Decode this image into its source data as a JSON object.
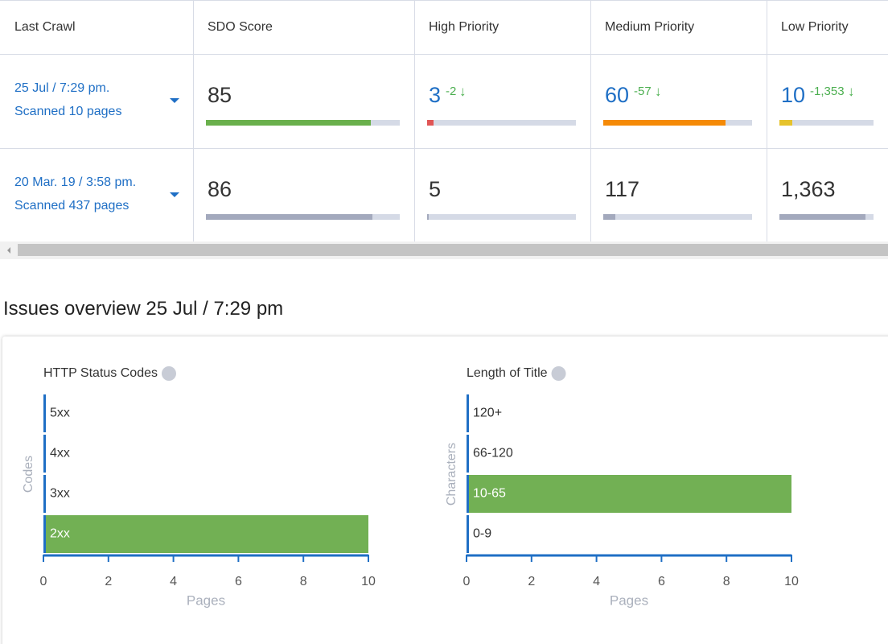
{
  "table": {
    "headers": [
      "Last Crawl",
      "SDO Score",
      "High Priority",
      "Medium Priority",
      "Low Priority"
    ],
    "rows": [
      {
        "date": "25 Jul / 7:29 pm.",
        "pages": "Scanned 10 pages",
        "score": {
          "value": 85,
          "color": "#6ab04c"
        },
        "high": {
          "value": 3,
          "change": -2,
          "color": "#e05555"
        },
        "medium": {
          "value": 60,
          "change": -57,
          "color": "#f58a07"
        },
        "low": {
          "value": 10,
          "change": -1353,
          "change_label": "-1,353",
          "color": "#e6c32c"
        }
      },
      {
        "date": "20 Mar. 19 / 3:58 pm.",
        "pages": "Scanned 437 pages",
        "score": {
          "value": 86,
          "color": "#a3a9bd"
        },
        "high": {
          "value": 5,
          "color": "#a3a9bd"
        },
        "medium": {
          "value": 117,
          "color": "#a3a9bd"
        },
        "low": {
          "value": 1363,
          "label": "1,363",
          "color": "#a3a9bd"
        }
      }
    ]
  },
  "section_title": "Issues overview 25 Jul / 7:29 pm",
  "chart_data": [
    {
      "type": "bar",
      "title": "HTTP Status Codes",
      "categories": [
        "5xx",
        "4xx",
        "3xx",
        "2xx"
      ],
      "values": [
        0,
        0,
        0,
        10
      ],
      "color": "#72b054",
      "xlim": [
        0,
        10
      ],
      "xticks": [
        0,
        2,
        4,
        6,
        8,
        10
      ],
      "xlabel": "Pages",
      "ylabel": "Codes"
    },
    {
      "type": "bar",
      "title": "Length of Title",
      "categories": [
        "120+",
        "66-120",
        "10-65",
        "0-9"
      ],
      "values": [
        0,
        0,
        10,
        0
      ],
      "color": "#72b054",
      "xlim": [
        0,
        10
      ],
      "xticks": [
        0,
        2,
        4,
        6,
        8,
        10
      ],
      "xlabel": "Pages",
      "ylabel": "Characters"
    }
  ]
}
